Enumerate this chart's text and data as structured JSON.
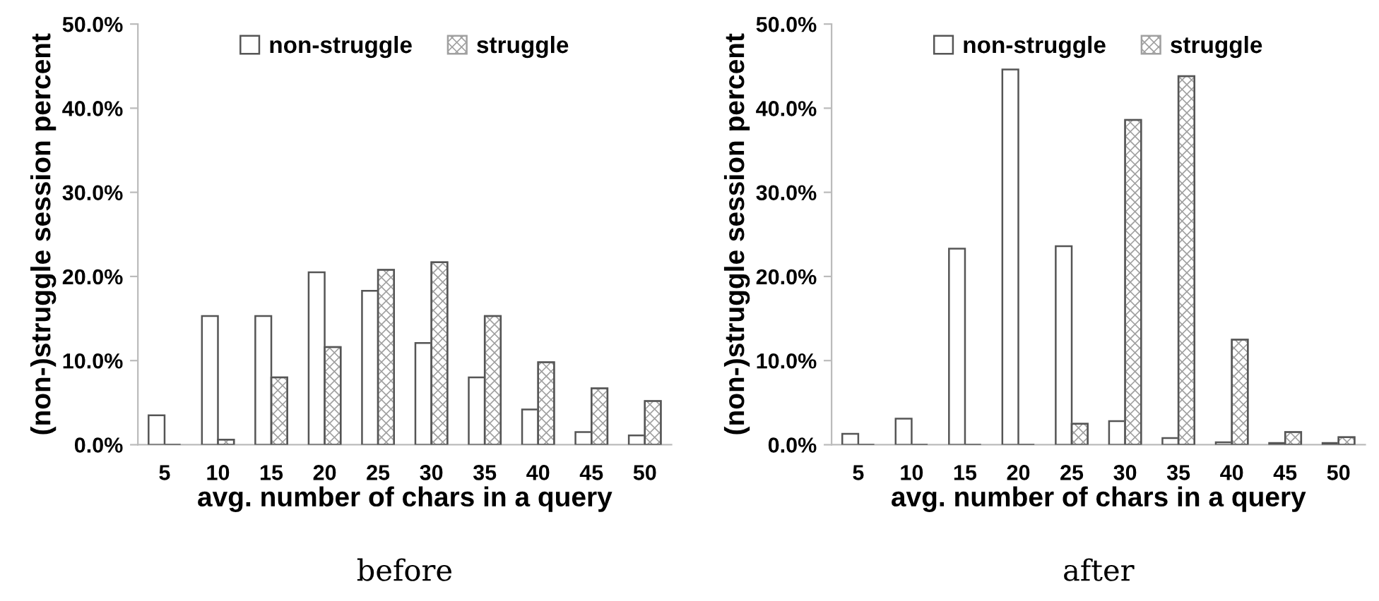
{
  "chart_data": [
    {
      "type": "bar",
      "title": "before",
      "xlabel": "avg. number of chars in a query",
      "ylabel": "(non-)struggle session percent",
      "categories": [
        "5",
        "10",
        "15",
        "20",
        "25",
        "30",
        "35",
        "40",
        "45",
        "50"
      ],
      "series": [
        {
          "name": "non-struggle",
          "color": "#ffffff",
          "values": [
            3.5,
            15.3,
            15.3,
            20.5,
            18.3,
            12.1,
            8.0,
            4.2,
            1.5,
            1.1
          ]
        },
        {
          "name": "struggle",
          "color": "#a0a0a0",
          "values": [
            0,
            0.6,
            8.0,
            11.6,
            20.8,
            21.7,
            15.3,
            9.8,
            6.7,
            5.2
          ]
        }
      ],
      "ylim": [
        0,
        50
      ],
      "yticks": [
        {
          "value": 0,
          "label": "0.0%"
        },
        {
          "value": 10,
          "label": "10.0%"
        },
        {
          "value": 20,
          "label": "20.0%"
        },
        {
          "value": 30,
          "label": "30.0%"
        },
        {
          "value": 40,
          "label": "40.0%"
        },
        {
          "value": 50,
          "label": "50.0%"
        }
      ],
      "grid": false,
      "legend": "top"
    },
    {
      "type": "bar",
      "title": "after",
      "xlabel": "avg. number of chars in a query",
      "ylabel": "(non-)struggle session percent",
      "categories": [
        "5",
        "10",
        "15",
        "20",
        "25",
        "30",
        "35",
        "40",
        "45",
        "50"
      ],
      "series": [
        {
          "name": "non-struggle",
          "color": "#ffffff",
          "values": [
            1.3,
            3.1,
            23.3,
            44.6,
            23.6,
            2.8,
            0.8,
            0.3,
            0.2,
            0.2
          ]
        },
        {
          "name": "struggle",
          "color": "#a0a0a0",
          "values": [
            0,
            0,
            0,
            0,
            2.5,
            38.6,
            43.8,
            12.5,
            1.5,
            0.9
          ]
        }
      ],
      "ylim": [
        0,
        50
      ],
      "yticks": [
        {
          "value": 0,
          "label": "0.0%"
        },
        {
          "value": 10,
          "label": "10.0%"
        },
        {
          "value": 20,
          "label": "20.0%"
        },
        {
          "value": 30,
          "label": "30.0%"
        },
        {
          "value": 40,
          "label": "40.0%"
        },
        {
          "value": 50,
          "label": "50.0%"
        }
      ],
      "grid": false,
      "legend": "top"
    }
  ]
}
